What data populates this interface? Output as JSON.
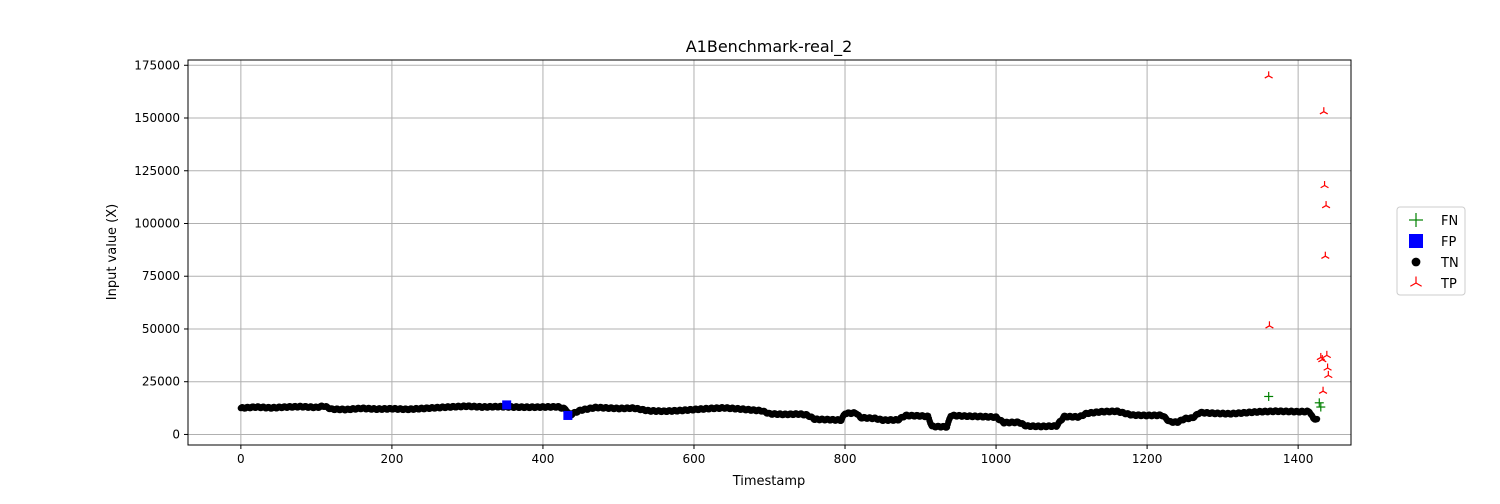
{
  "chart_data": {
    "type": "scatter",
    "title": "A1Benchmark-real_2",
    "xlabel": "Timestamp",
    "ylabel": "Input value (X)",
    "xlim": [
      -70,
      1470
    ],
    "ylim": [
      -5000,
      177500
    ],
    "xticks": [
      0,
      200,
      400,
      600,
      800,
      1000,
      1200,
      1400
    ],
    "yticks": [
      0,
      25000,
      50000,
      75000,
      100000,
      125000,
      150000,
      175000
    ],
    "xtick_labels": [
      "0",
      "200",
      "400",
      "600",
      "800",
      "1000",
      "1200",
      "1400"
    ],
    "ytick_labels": [
      "0",
      "25000",
      "50000",
      "75000",
      "100000",
      "125000",
      "150000",
      "175000"
    ],
    "grid": true,
    "legend_position": "outside-right",
    "tn_segments": [
      [
        0,
        12500
      ],
      [
        20,
        13000
      ],
      [
        40,
        12600
      ],
      [
        60,
        13000
      ],
      [
        80,
        13200
      ],
      [
        100,
        12800
      ],
      [
        110,
        13500
      ],
      [
        120,
        12000
      ],
      [
        140,
        11800
      ],
      [
        160,
        12400
      ],
      [
        180,
        12000
      ],
      [
        200,
        12200
      ],
      [
        220,
        11900
      ],
      [
        240,
        12300
      ],
      [
        260,
        12700
      ],
      [
        280,
        13100
      ],
      [
        300,
        13400
      ],
      [
        320,
        13000
      ],
      [
        340,
        13200
      ],
      [
        360,
        13000
      ],
      [
        380,
        12900
      ],
      [
        400,
        13000
      ],
      [
        420,
        13100
      ],
      [
        430,
        12000
      ],
      [
        436,
        9000
      ],
      [
        440,
        10000
      ],
      [
        450,
        11500
      ],
      [
        470,
        12800
      ],
      [
        500,
        12300
      ],
      [
        520,
        12500
      ],
      [
        540,
        11200
      ],
      [
        560,
        11000
      ],
      [
        580,
        11300
      ],
      [
        600,
        11800
      ],
      [
        620,
        12300
      ],
      [
        640,
        12600
      ],
      [
        660,
        12100
      ],
      [
        690,
        11200
      ],
      [
        700,
        9800
      ],
      [
        720,
        9500
      ],
      [
        740,
        9700
      ],
      [
        750,
        9200
      ],
      [
        760,
        7200
      ],
      [
        780,
        7000
      ],
      [
        795,
        6800
      ],
      [
        800,
        10000
      ],
      [
        815,
        10200
      ],
      [
        820,
        8000
      ],
      [
        840,
        7600
      ],
      [
        850,
        6800
      ],
      [
        870,
        6900
      ],
      [
        880,
        9000
      ],
      [
        900,
        8800
      ],
      [
        910,
        8500
      ],
      [
        915,
        3800
      ],
      [
        935,
        3600
      ],
      [
        940,
        9000
      ],
      [
        960,
        8700
      ],
      [
        980,
        8500
      ],
      [
        1000,
        8200
      ],
      [
        1010,
        5600
      ],
      [
        1030,
        5800
      ],
      [
        1040,
        4000
      ],
      [
        1060,
        3800
      ],
      [
        1080,
        4000
      ],
      [
        1090,
        8500
      ],
      [
        1110,
        8300
      ],
      [
        1120,
        10000
      ],
      [
        1140,
        10800
      ],
      [
        1160,
        11000
      ],
      [
        1180,
        9200
      ],
      [
        1200,
        9000
      ],
      [
        1220,
        9100
      ],
      [
        1230,
        6000
      ],
      [
        1240,
        5800
      ],
      [
        1250,
        7500
      ],
      [
        1260,
        7800
      ],
      [
        1270,
        10400
      ],
      [
        1290,
        10000
      ],
      [
        1310,
        9800
      ],
      [
        1330,
        10300
      ],
      [
        1350,
        10800
      ],
      [
        1370,
        11000
      ],
      [
        1390,
        10900
      ],
      [
        1400,
        10800
      ],
      [
        1415,
        10900
      ],
      [
        1420,
        7500
      ],
      [
        1425,
        7300
      ]
    ],
    "series": [
      {
        "name": "FN",
        "marker": "plus",
        "color": "#008000",
        "points": [
          [
            1361,
            18000
          ],
          [
            1428,
            15000
          ],
          [
            1430,
            13000
          ]
        ]
      },
      {
        "name": "FP",
        "marker": "square",
        "color": "#0000ff",
        "points": [
          [
            352,
            14000
          ],
          [
            433,
            9000
          ]
        ]
      },
      {
        "name": "TN",
        "marker": "circle",
        "color": "#000000",
        "points": []
      },
      {
        "name": "TP",
        "marker": "tri_up",
        "color": "#ff0000",
        "points": [
          [
            1361,
            170000
          ],
          [
            1362,
            51500
          ],
          [
            1430,
            36500
          ],
          [
            1432,
            35500
          ],
          [
            1433,
            20500
          ],
          [
            1434,
            153000
          ],
          [
            1435,
            118000
          ],
          [
            1436,
            84500
          ],
          [
            1437,
            108500
          ],
          [
            1438,
            37500
          ],
          [
            1439,
            31500
          ],
          [
            1440,
            28000
          ]
        ]
      }
    ]
  }
}
